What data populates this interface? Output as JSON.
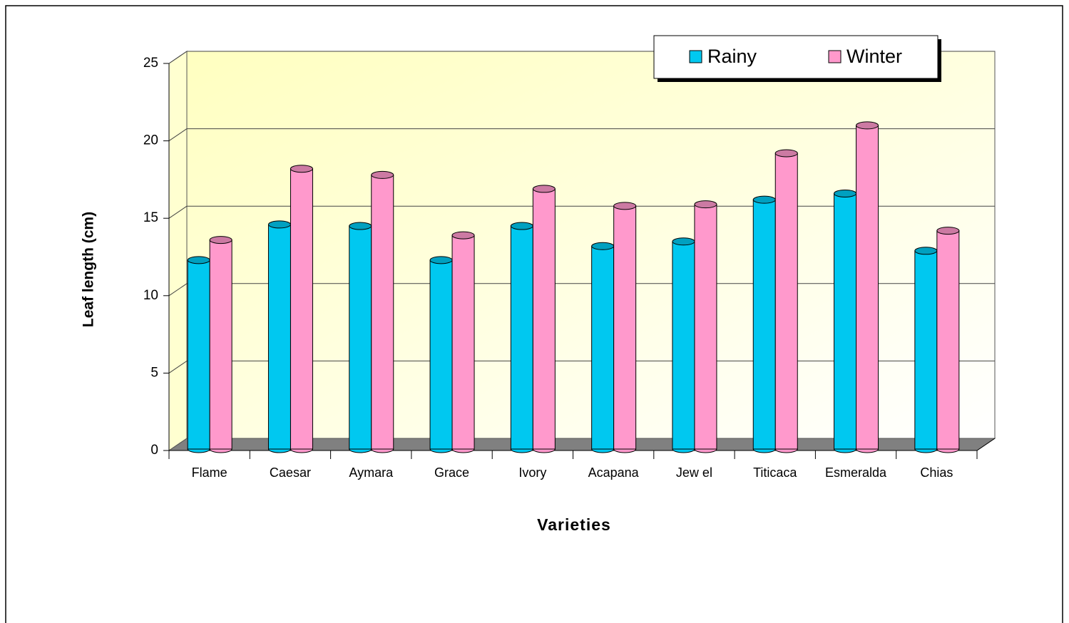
{
  "chart_data": {
    "type": "bar",
    "xlabel": "Varieties",
    "ylabel": "Leaf length (cm)",
    "categories": [
      "Flame",
      "Caesar",
      "Aymara",
      "Grace",
      "Ivory",
      "Acapana",
      "Jew el",
      "Titicaca",
      "Esmeralda",
      "Chias"
    ],
    "series": [
      {
        "name": "Rainy",
        "color": "#00c8f0",
        "values": [
          12.3,
          14.6,
          14.5,
          12.3,
          14.5,
          13.2,
          13.5,
          16.2,
          16.6,
          12.9
        ]
      },
      {
        "name": "Winter",
        "color": "#ff99cc",
        "values": [
          13.6,
          18.2,
          17.8,
          13.9,
          16.9,
          15.8,
          15.9,
          19.2,
          21.0,
          14.2
        ]
      }
    ],
    "ylim": [
      0,
      25
    ],
    "yticks": [
      0,
      5,
      10,
      15,
      20,
      25
    ],
    "grid": true,
    "legend": "top-right"
  }
}
